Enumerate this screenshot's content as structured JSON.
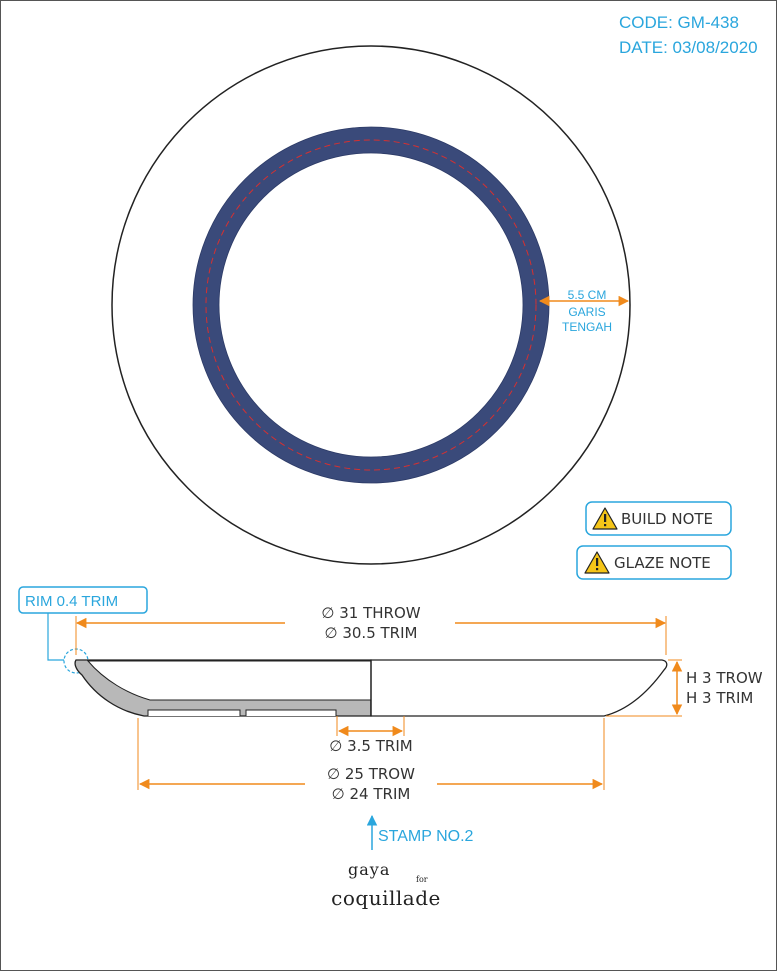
{
  "header": {
    "code_line": "CODE: GM-438",
    "date_line": "DATE: 03/08/2020"
  },
  "top_view": {
    "band_width_label": "5.5 CM",
    "centerline_label_1": "GARIS",
    "centerline_label_2": "TENGAH"
  },
  "notes": {
    "build": "BUILD NOTE",
    "glaze": "GLAZE NOTE"
  },
  "side_view": {
    "rim_label": "RIM 0.4 TRIM",
    "outer_throw": "∅ 31 THROW",
    "outer_trim": "∅ 30.5 TRIM",
    "height_throw": "H 3 TROW",
    "height_trim": "H 3 TRIM",
    "foot_inner": "∅ 3.5 TRIM",
    "base_throw": "∅ 25 TROW",
    "base_trim": "∅ 24 TRIM",
    "stamp": "STAMP NO.2"
  },
  "brand": {
    "line1": "gaya",
    "for": "for",
    "line2": "coquillade"
  },
  "colors": {
    "band": "#3a4a7a",
    "centerline": "#d63030",
    "dimension": "#f08a1c",
    "accent": "#2aa6dd",
    "glaze_section": "#b8b8b8"
  },
  "icons": {
    "warning": "warning-triangle-icon",
    "stamp_arrow": "arrow-up-icon"
  }
}
